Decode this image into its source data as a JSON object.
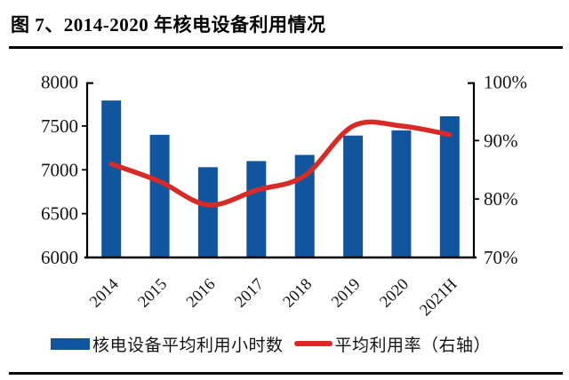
{
  "header": {
    "title": "图 7、2014-2020 年核电设备利用情况"
  },
  "legend": {
    "items": [
      {
        "swatch": "bar-swatch",
        "label": "核电设备平均利用小时数",
        "color": "#11559E"
      },
      {
        "swatch": "line-swatch",
        "label": "平均利用率（右轴）",
        "color": "#D62B27"
      }
    ]
  },
  "colors": {
    "bar": "#11559E",
    "line": "#D62B27",
    "axis": "#000000",
    "text": "#141414"
  },
  "chart_data": {
    "type": "bar",
    "subtype": "combo-bar-line",
    "title": "图 7、2014-2020 年核电设备利用情况",
    "categories": [
      "2014",
      "2015",
      "2016",
      "2017",
      "2018",
      "2019",
      "2020",
      "2021H"
    ],
    "series": [
      {
        "name": "核电设备平均利用小时数",
        "type": "bar",
        "axis": "left",
        "color": "#11559E",
        "values": [
          7790,
          7400,
          7030,
          7100,
          7170,
          7390,
          7450,
          7610
        ]
      },
      {
        "name": "平均利用率（右轴）",
        "type": "line",
        "axis": "right",
        "color": "#D62B27",
        "values": [
          86,
          83,
          79,
          81.5,
          84,
          92.5,
          92.5,
          91
        ]
      }
    ],
    "left_axis": {
      "min": 6000,
      "max": 8000,
      "tick_labels": [
        "8000",
        "7500",
        "7000",
        "6500",
        "6000"
      ]
    },
    "right_axis": {
      "min": 70,
      "max": 100,
      "tick_labels": [
        "100%",
        "90%",
        "80%",
        "70%"
      ]
    },
    "grid": false,
    "legend_position": "bottom",
    "x_labels_rotation_deg": -45
  }
}
